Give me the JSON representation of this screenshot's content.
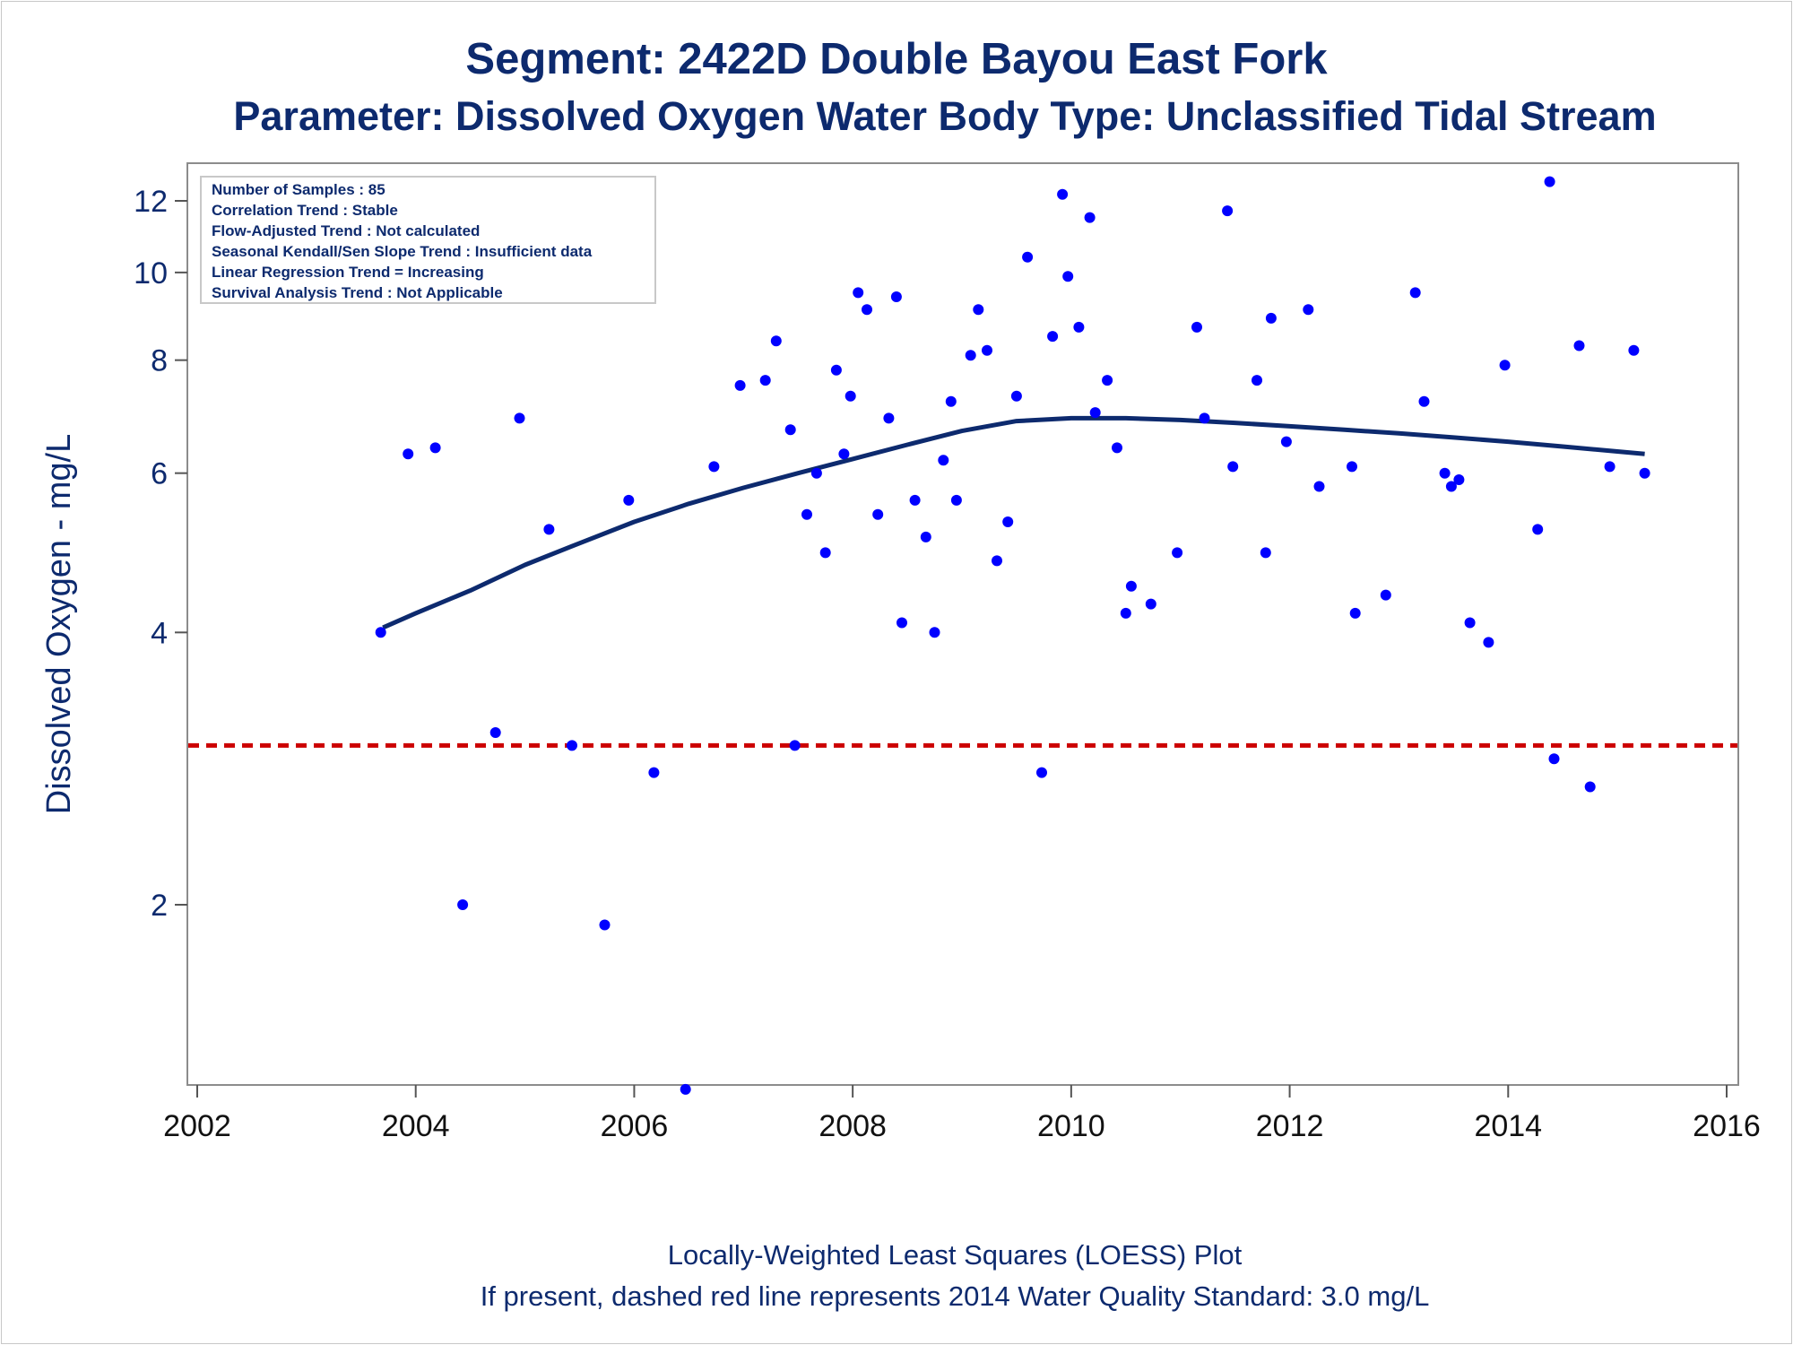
{
  "title": "Segment: 2422D  Double Bayou East Fork",
  "subtitle": "Parameter: Dissolved Oxygen   Water Body Type: Unclassified Tidal Stream",
  "footer": {
    "line1": "Locally-Weighted Least Squares (LOESS) Plot",
    "line2": "If present, dashed red line represents 2014 Water Quality Standard: 3.0 mg/L"
  },
  "info_box": [
    "Number of Samples : 85",
    "Correlation Trend : Stable",
    "Flow-Adjusted Trend : Not calculated",
    "Seasonal Kendall/Sen Slope Trend : Insufficient data",
    "Linear Regression Trend = Increasing",
    "Survival Analysis Trend : Not Applicable"
  ],
  "colors": {
    "points": "#0000ff",
    "loess": "#0d2a6e",
    "standard": "#cc0000",
    "text": "#0d2a6e"
  },
  "chart_data": {
    "type": "scatter",
    "ylabel": "Dissolved Oxygen - mg/L",
    "xlabel": "",
    "y_scale": "log",
    "xlim": [
      2002,
      2016
    ],
    "ylim": [
      1.2,
      13
    ],
    "x_ticks": [
      2002,
      2004,
      2006,
      2008,
      2010,
      2012,
      2014,
      2016
    ],
    "y_ticks": [
      2,
      4,
      6,
      8,
      10,
      12
    ],
    "grid": false,
    "standard_line": {
      "value": 3.0,
      "style": "dashed",
      "color": "#cc0000"
    },
    "points": [
      [
        2003.68,
        4.0
      ],
      [
        2003.93,
        6.3
      ],
      [
        2004.18,
        6.4
      ],
      [
        2004.43,
        2.0
      ],
      [
        2004.73,
        3.1
      ],
      [
        2004.95,
        6.9
      ],
      [
        2005.22,
        5.2
      ],
      [
        2005.43,
        3.0
      ],
      [
        2005.73,
        1.9
      ],
      [
        2005.95,
        5.6
      ],
      [
        2006.18,
        2.8
      ],
      [
        2006.47,
        1.25
      ],
      [
        2006.73,
        6.1
      ],
      [
        2006.97,
        7.5
      ],
      [
        2007.2,
        7.6
      ],
      [
        2007.3,
        8.4
      ],
      [
        2007.43,
        6.7
      ],
      [
        2007.47,
        3.0
      ],
      [
        2007.58,
        5.4
      ],
      [
        2007.67,
        6.0
      ],
      [
        2007.75,
        4.9
      ],
      [
        2007.85,
        7.8
      ],
      [
        2007.92,
        6.3
      ],
      [
        2007.98,
        7.3
      ],
      [
        2008.05,
        9.5
      ],
      [
        2008.13,
        9.1
      ],
      [
        2008.23,
        5.4
      ],
      [
        2008.33,
        6.9
      ],
      [
        2008.4,
        9.4
      ],
      [
        2008.45,
        4.1
      ],
      [
        2008.57,
        5.6
      ],
      [
        2008.67,
        5.1
      ],
      [
        2008.75,
        4.0
      ],
      [
        2008.83,
        6.2
      ],
      [
        2008.9,
        7.2
      ],
      [
        2008.95,
        5.6
      ],
      [
        2009.08,
        8.1
      ],
      [
        2009.15,
        9.1
      ],
      [
        2009.23,
        8.2
      ],
      [
        2009.32,
        4.8
      ],
      [
        2009.42,
        5.3
      ],
      [
        2009.5,
        7.3
      ],
      [
        2009.6,
        10.4
      ],
      [
        2009.73,
        2.8
      ],
      [
        2009.83,
        8.5
      ],
      [
        2009.92,
        12.2
      ],
      [
        2009.97,
        9.9
      ],
      [
        2010.07,
        8.7
      ],
      [
        2010.17,
        11.5
      ],
      [
        2010.22,
        7.0
      ],
      [
        2010.33,
        7.6
      ],
      [
        2010.42,
        6.4
      ],
      [
        2010.5,
        4.2
      ],
      [
        2010.55,
        4.5
      ],
      [
        2010.73,
        4.3
      ],
      [
        2010.97,
        4.9
      ],
      [
        2011.15,
        8.7
      ],
      [
        2011.22,
        6.9
      ],
      [
        2011.43,
        11.7
      ],
      [
        2011.48,
        6.1
      ],
      [
        2011.7,
        7.6
      ],
      [
        2011.78,
        4.9
      ],
      [
        2011.83,
        8.9
      ],
      [
        2011.97,
        6.5
      ],
      [
        2012.17,
        9.1
      ],
      [
        2012.27,
        5.8
      ],
      [
        2012.57,
        6.1
      ],
      [
        2012.6,
        4.2
      ],
      [
        2012.88,
        4.4
      ],
      [
        2013.15,
        9.5
      ],
      [
        2013.23,
        7.2
      ],
      [
        2013.42,
        6.0
      ],
      [
        2013.48,
        5.8
      ],
      [
        2013.55,
        5.9
      ],
      [
        2013.65,
        4.1
      ],
      [
        2013.82,
        3.9
      ],
      [
        2013.97,
        7.9
      ],
      [
        2014.27,
        5.2
      ],
      [
        2014.38,
        12.6
      ],
      [
        2014.42,
        2.9
      ],
      [
        2014.65,
        8.3
      ],
      [
        2014.75,
        2.7
      ],
      [
        2014.93,
        6.1
      ],
      [
        2015.15,
        8.2
      ],
      [
        2015.25,
        6.0
      ]
    ],
    "loess_curve": [
      [
        2003.7,
        4.05
      ],
      [
        2004.0,
        4.2
      ],
      [
        2004.5,
        4.45
      ],
      [
        2005.0,
        4.75
      ],
      [
        2005.5,
        5.02
      ],
      [
        2006.0,
        5.3
      ],
      [
        2006.5,
        5.55
      ],
      [
        2007.0,
        5.78
      ],
      [
        2007.5,
        6.0
      ],
      [
        2008.0,
        6.22
      ],
      [
        2008.5,
        6.45
      ],
      [
        2009.0,
        6.68
      ],
      [
        2009.5,
        6.85
      ],
      [
        2010.0,
        6.9
      ],
      [
        2010.5,
        6.9
      ],
      [
        2011.0,
        6.87
      ],
      [
        2011.5,
        6.82
      ],
      [
        2012.0,
        6.76
      ],
      [
        2012.5,
        6.7
      ],
      [
        2013.0,
        6.64
      ],
      [
        2013.5,
        6.57
      ],
      [
        2014.0,
        6.5
      ],
      [
        2014.5,
        6.42
      ],
      [
        2015.0,
        6.34
      ],
      [
        2015.25,
        6.3
      ]
    ]
  }
}
